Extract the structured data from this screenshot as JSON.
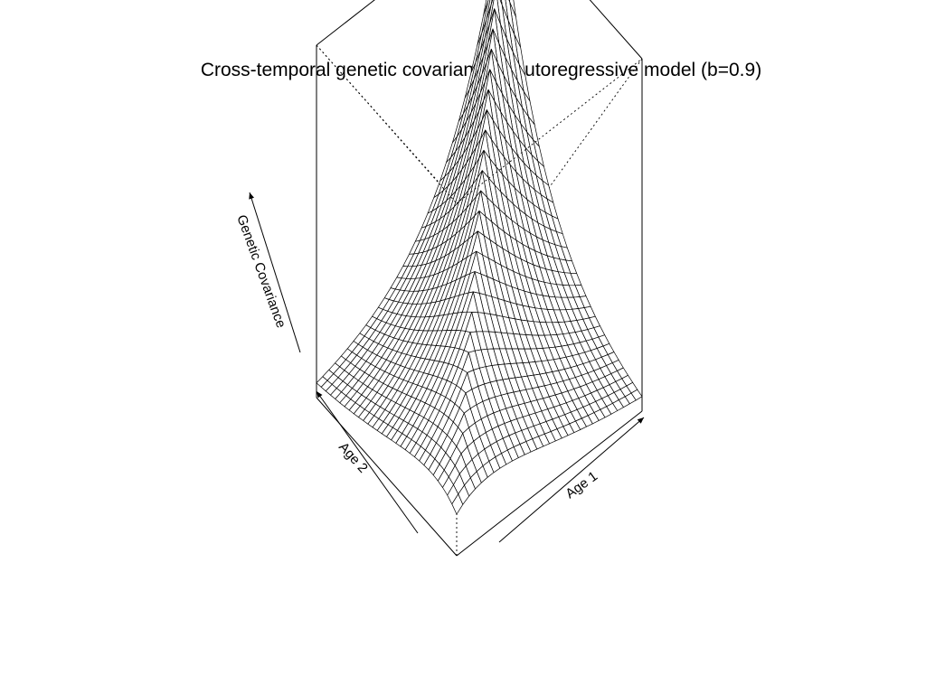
{
  "chart_data": {
    "type": "surface",
    "title": "Cross-temporal genetic covariances: autoregressive model (b=0.9)",
    "x_label": "Age 1",
    "y_label": "Age 2",
    "z_label": "Genetic Covariance",
    "model": "autoregressive",
    "b": 0.9,
    "grid_size": 30,
    "axis_ticks": false,
    "box": true,
    "mesh": true
  }
}
